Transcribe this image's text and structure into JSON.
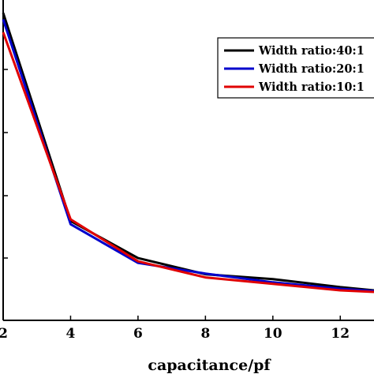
{
  "chart_data": {
    "type": "line",
    "xlabel": "capacitance/pf",
    "ylabel": "",
    "x_ticks": [
      2,
      4,
      6,
      8,
      10,
      12
    ],
    "xlim": [
      2,
      13
    ],
    "ylim": [
      0,
      9
    ],
    "grid": false,
    "legend_position": "top-right",
    "series": [
      {
        "name": "Width ratio:40:1",
        "color": "#000000",
        "x": [
          2,
          4,
          6,
          8,
          10,
          12,
          13
        ],
        "y": [
          8.6,
          2.15,
          1.0,
          0.5,
          0.35,
          0.1,
          0.0
        ]
      },
      {
        "name": "Width ratio:20:1",
        "color": "#0000cc",
        "x": [
          2,
          4,
          6,
          8,
          10,
          12,
          13
        ],
        "y": [
          8.4,
          2.05,
          0.85,
          0.52,
          0.25,
          0.05,
          -0.02
        ]
      },
      {
        "name": "Width ratio:10:1",
        "color": "#e00000",
        "x": [
          2,
          4,
          6,
          8,
          10,
          12,
          13
        ],
        "y": [
          8.0,
          2.2,
          0.9,
          0.4,
          0.2,
          0.0,
          -0.05
        ]
      }
    ]
  }
}
